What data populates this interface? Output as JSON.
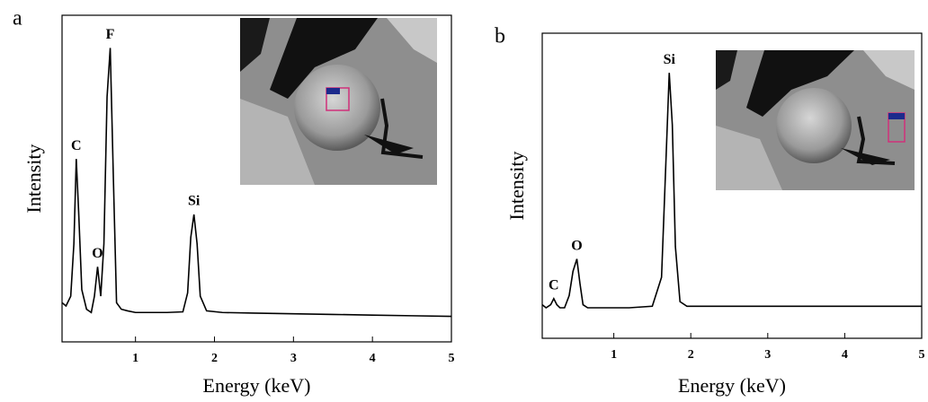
{
  "chart_data": [
    {
      "type": "line",
      "panel_label": "a",
      "xlabel": "Energy (keV)",
      "ylabel": "Intensity",
      "color": "#000000",
      "xlim": [
        0.07,
        5
      ],
      "ylim": [
        0,
        100
      ],
      "xticks": [
        1,
        2,
        3,
        4,
        5
      ],
      "x": [
        0.07,
        0.12,
        0.18,
        0.22,
        0.25,
        0.28,
        0.32,
        0.38,
        0.44,
        0.48,
        0.52,
        0.56,
        0.6,
        0.64,
        0.68,
        0.72,
        0.76,
        0.82,
        0.9,
        1.0,
        1.2,
        1.4,
        1.6,
        1.66,
        1.7,
        1.74,
        1.78,
        1.82,
        1.9,
        2.1,
        2.5,
        3,
        3.5,
        4,
        4.5,
        5
      ],
      "values": [
        12,
        11,
        14,
        30,
        56,
        40,
        16,
        10,
        9,
        14,
        23,
        14,
        30,
        75,
        90,
        50,
        12,
        10,
        9.5,
        9,
        9,
        9,
        9.2,
        15,
        32,
        39,
        30,
        14,
        9.5,
        9,
        8.8,
        8.6,
        8.4,
        8.2,
        8,
        7.8
      ],
      "annotations": [
        {
          "text": "C",
          "x": 0.25,
          "y": 56
        },
        {
          "text": "O",
          "x": 0.52,
          "y": 23
        },
        {
          "text": "F",
          "x": 0.68,
          "y": 90
        },
        {
          "text": "Si",
          "x": 1.74,
          "y": 39
        }
      ]
    },
    {
      "type": "line",
      "panel_label": "b",
      "xlabel": "Energy (keV)",
      "ylabel": "Intensity",
      "color": "#000000",
      "xlim": [
        0.07,
        5
      ],
      "ylim": [
        0,
        100
      ],
      "xticks": [
        1,
        2,
        3,
        4,
        5
      ],
      "x": [
        0.07,
        0.12,
        0.18,
        0.22,
        0.26,
        0.3,
        0.36,
        0.42,
        0.47,
        0.52,
        0.56,
        0.6,
        0.66,
        0.75,
        0.9,
        1.2,
        1.5,
        1.62,
        1.68,
        1.72,
        1.76,
        1.8,
        1.86,
        1.95,
        2.2,
        2.6,
        3,
        3.5,
        4,
        4.5,
        5
      ],
      "values": [
        11,
        10,
        11,
        13,
        11,
        10,
        10,
        14,
        22,
        26,
        18,
        11,
        10,
        10,
        10,
        10,
        10.5,
        20,
        60,
        87,
        70,
        30,
        12,
        10.5,
        10.5,
        10.5,
        10.5,
        10.5,
        10.5,
        10.5,
        10.5
      ],
      "annotations": [
        {
          "text": "C",
          "x": 0.22,
          "y": 13
        },
        {
          "text": "O",
          "x": 0.52,
          "y": 26
        },
        {
          "text": "Si",
          "x": 1.72,
          "y": 87
        }
      ]
    }
  ]
}
